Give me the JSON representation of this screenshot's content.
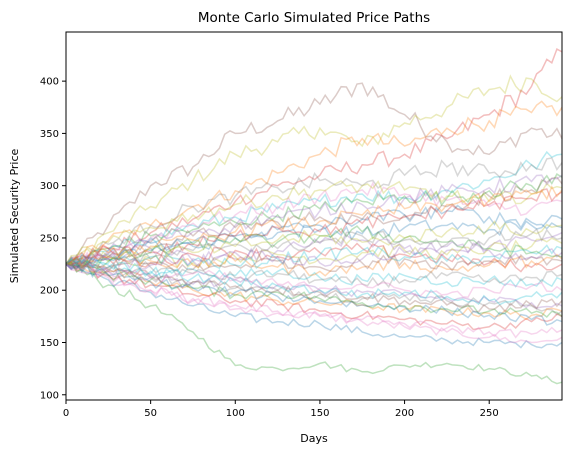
{
  "chart_data": {
    "type": "line",
    "title": "Monte Carlo Simulated Price Paths",
    "xlabel": "Days",
    "ylabel": "Simulated Security Price",
    "xlim": [
      0,
      293
    ],
    "ylim": [
      95,
      447
    ],
    "xticks": [
      0,
      50,
      100,
      150,
      200,
      250
    ],
    "yticks": [
      100,
      150,
      200,
      250,
      300,
      350,
      400
    ],
    "grid": false,
    "legend": false,
    "line_alpha": 0.3,
    "palette": [
      "#1f77b4",
      "#ff7f0e",
      "#2ca02c",
      "#d62728",
      "#9467bd",
      "#8c564b",
      "#e377c2",
      "#7f7f7f",
      "#bcbd22",
      "#17becf"
    ],
    "series": [
      {
        "color": "#8c564b",
        "x": [
          0,
          25,
          50,
          75,
          100,
          125,
          150,
          175,
          200,
          225,
          250,
          275,
          293
        ],
        "y": [
          225,
          262,
          300,
          318,
          350,
          362,
          378,
          398,
          368,
          342,
          330,
          355,
          345
        ]
      },
      {
        "color": "#bcbd22",
        "x": [
          0,
          25,
          50,
          75,
          100,
          125,
          150,
          175,
          200,
          225,
          250,
          275,
          293
        ],
        "y": [
          225,
          255,
          280,
          305,
          330,
          342,
          355,
          338,
          360,
          375,
          392,
          402,
          385
        ]
      },
      {
        "color": "#d62728",
        "x": [
          0,
          25,
          50,
          75,
          100,
          125,
          150,
          175,
          200,
          225,
          250,
          275,
          293
        ],
        "y": [
          225,
          240,
          255,
          268,
          285,
          300,
          310,
          320,
          330,
          345,
          368,
          395,
          428
        ]
      },
      {
        "color": "#ff7f0e",
        "x": [
          0,
          25,
          50,
          75,
          100,
          125,
          150,
          175,
          200,
          225,
          250,
          275,
          293
        ],
        "y": [
          225,
          248,
          262,
          280,
          295,
          312,
          330,
          345,
          338,
          355,
          362,
          370,
          375
        ]
      },
      {
        "color": "#2ca02c",
        "x": [
          0,
          25,
          50,
          75,
          100,
          125,
          150,
          175,
          200,
          225,
          250,
          275,
          293
        ],
        "y": [
          225,
          205,
          185,
          160,
          128,
          125,
          130,
          122,
          128,
          130,
          125,
          118,
          112
        ]
      },
      {
        "color": "#1f77b4",
        "x": [
          0,
          25,
          50,
          75,
          100,
          125,
          150,
          175,
          200,
          225,
          250,
          275,
          293
        ],
        "y": [
          225,
          210,
          198,
          185,
          175,
          170,
          168,
          160,
          155,
          152,
          150,
          148,
          150
        ]
      },
      {
        "color": "#e377c2",
        "x": [
          0,
          25,
          50,
          75,
          100,
          125,
          150,
          175,
          200,
          225,
          250,
          275,
          293
        ],
        "y": [
          225,
          215,
          200,
          190,
          182,
          178,
          175,
          170,
          165,
          160,
          155,
          150,
          155
        ]
      },
      {
        "color": "#9467bd",
        "x": [
          0,
          25,
          50,
          75,
          100,
          125,
          150,
          175,
          200,
          225,
          250,
          275,
          293
        ],
        "y": [
          225,
          232,
          240,
          228,
          230,
          238,
          245,
          248,
          240,
          238,
          242,
          248,
          255
        ]
      },
      {
        "color": "#17becf",
        "x": [
          0,
          25,
          50,
          75,
          100,
          125,
          150,
          175,
          200,
          225,
          250,
          275,
          293
        ],
        "y": [
          225,
          238,
          250,
          262,
          270,
          278,
          285,
          292,
          288,
          296,
          305,
          320,
          330
        ]
      },
      {
        "color": "#7f7f7f",
        "x": [
          0,
          25,
          50,
          75,
          100,
          125,
          150,
          175,
          200,
          225,
          250,
          275,
          293
        ],
        "y": [
          225,
          220,
          212,
          208,
          202,
          200,
          196,
          192,
          195,
          190,
          188,
          185,
          180
        ]
      },
      {
        "color": "#8c564b",
        "x": [
          0,
          25,
          50,
          75,
          100,
          125,
          150,
          175,
          200,
          225,
          250,
          275,
          293
        ],
        "y": [
          225,
          232,
          246,
          252,
          260,
          265,
          270,
          268,
          272,
          280,
          290,
          296,
          302
        ]
      },
      {
        "color": "#d62728",
        "x": [
          0,
          25,
          50,
          75,
          100,
          125,
          150,
          175,
          200,
          225,
          250,
          275,
          293
        ],
        "y": [
          225,
          214,
          205,
          196,
          190,
          186,
          180,
          176,
          172,
          168,
          165,
          170,
          175
        ]
      },
      {
        "color": "#2ca02c",
        "x": [
          0,
          25,
          50,
          75,
          100,
          125,
          150,
          175,
          200,
          225,
          250,
          275,
          293
        ],
        "y": [
          225,
          240,
          252,
          258,
          265,
          272,
          278,
          285,
          290,
          288,
          295,
          300,
          308
        ]
      },
      {
        "color": "#ff7f0e",
        "x": [
          0,
          25,
          50,
          75,
          100,
          125,
          150,
          175,
          200,
          225,
          250,
          275,
          293
        ],
        "y": [
          225,
          218,
          208,
          200,
          195,
          190,
          188,
          186,
          182,
          180,
          178,
          176,
          180
        ]
      },
      {
        "color": "#1f77b4",
        "x": [
          0,
          25,
          50,
          75,
          100,
          125,
          150,
          175,
          200,
          225,
          250,
          275,
          293
        ],
        "y": [
          225,
          235,
          245,
          242,
          250,
          255,
          258,
          254,
          260,
          262,
          258,
          262,
          268
        ]
      },
      {
        "color": "#bcbd22",
        "x": [
          0,
          25,
          50,
          75,
          100,
          125,
          150,
          175,
          200,
          225,
          250,
          275,
          293
        ],
        "y": [
          225,
          228,
          230,
          226,
          232,
          234,
          230,
          236,
          238,
          234,
          240,
          242,
          245
        ]
      },
      {
        "color": "#e377c2",
        "x": [
          0,
          25,
          50,
          75,
          100,
          125,
          150,
          175,
          200,
          225,
          250,
          275,
          293
        ],
        "y": [
          225,
          236,
          250,
          264,
          272,
          280,
          290,
          296,
          292,
          286,
          280,
          278,
          285
        ]
      },
      {
        "color": "#9467bd",
        "x": [
          0,
          25,
          50,
          75,
          100,
          125,
          150,
          175,
          200,
          225,
          250,
          275,
          293
        ],
        "y": [
          225,
          218,
          212,
          206,
          210,
          205,
          200,
          198,
          195,
          192,
          190,
          188,
          185
        ]
      },
      {
        "color": "#17becf",
        "x": [
          0,
          25,
          50,
          75,
          100,
          125,
          150,
          175,
          200,
          225,
          250,
          275,
          293
        ],
        "y": [
          225,
          222,
          216,
          220,
          214,
          218,
          212,
          210,
          214,
          208,
          210,
          206,
          210
        ]
      },
      {
        "color": "#7f7f7f",
        "x": [
          0,
          25,
          50,
          75,
          100,
          125,
          150,
          175,
          200,
          225,
          250,
          275,
          293
        ],
        "y": [
          225,
          244,
          262,
          280,
          290,
          298,
          305,
          300,
          310,
          318,
          312,
          320,
          322
        ]
      },
      {
        "color": "#d62728",
        "x": [
          0,
          25,
          50,
          75,
          100,
          125,
          150,
          175,
          200,
          225,
          250,
          275,
          293
        ],
        "y": [
          225,
          230,
          226,
          234,
          238,
          232,
          236,
          240,
          234,
          230,
          226,
          222,
          225
        ]
      },
      {
        "color": "#2ca02c",
        "x": [
          0,
          25,
          50,
          75,
          100,
          125,
          150,
          175,
          200,
          225,
          250,
          275,
          293
        ],
        "y": [
          225,
          215,
          210,
          202,
          196,
          198,
          192,
          188,
          185,
          182,
          180,
          178,
          175
        ]
      },
      {
        "color": "#1f77b4",
        "x": [
          0,
          25,
          50,
          75,
          100,
          125,
          150,
          175,
          200,
          225,
          250,
          275,
          293
        ],
        "y": [
          225,
          230,
          238,
          246,
          252,
          258,
          262,
          268,
          272,
          276,
          270,
          265,
          260
        ]
      },
      {
        "color": "#ff7f0e",
        "x": [
          0,
          25,
          50,
          75,
          100,
          125,
          150,
          175,
          200,
          225,
          250,
          275,
          293
        ],
        "y": [
          225,
          232,
          228,
          224,
          228,
          222,
          218,
          222,
          226,
          220,
          224,
          228,
          230
        ]
      },
      {
        "color": "#8c564b",
        "x": [
          0,
          25,
          50,
          75,
          100,
          125,
          150,
          175,
          200,
          225,
          250,
          275,
          293
        ],
        "y": [
          225,
          220,
          214,
          208,
          204,
          200,
          198,
          194,
          190,
          186,
          182,
          186,
          190
        ]
      },
      {
        "color": "#bcbd22",
        "x": [
          0,
          25,
          50,
          75,
          100,
          125,
          150,
          175,
          200,
          225,
          250,
          275,
          293
        ],
        "y": [
          225,
          246,
          260,
          272,
          282,
          290,
          296,
          300,
          296,
          290,
          285,
          292,
          298
        ]
      },
      {
        "color": "#e377c2",
        "x": [
          0,
          25,
          50,
          75,
          100,
          125,
          150,
          175,
          200,
          225,
          250,
          275,
          293
        ],
        "y": [
          225,
          212,
          200,
          192,
          186,
          180,
          176,
          172,
          168,
          164,
          160,
          158,
          162
        ]
      },
      {
        "color": "#9467bd",
        "x": [
          0,
          25,
          50,
          75,
          100,
          125,
          150,
          175,
          200,
          225,
          250,
          275,
          293
        ],
        "y": [
          225,
          238,
          248,
          256,
          262,
          270,
          276,
          282,
          288,
          294,
          298,
          304,
          310
        ]
      },
      {
        "color": "#17becf",
        "x": [
          0,
          25,
          50,
          75,
          100,
          125,
          150,
          175,
          200,
          225,
          250,
          275,
          293
        ],
        "y": [
          225,
          226,
          232,
          228,
          224,
          230,
          234,
          238,
          232,
          228,
          232,
          236,
          240
        ]
      },
      {
        "color": "#7f7f7f",
        "x": [
          0,
          25,
          50,
          75,
          100,
          125,
          150,
          175,
          200,
          225,
          250,
          275,
          293
        ],
        "y": [
          225,
          218,
          222,
          216,
          212,
          216,
          210,
          206,
          210,
          214,
          208,
          212,
          215
        ]
      },
      {
        "color": "#d62728",
        "x": [
          0,
          25,
          50,
          75,
          100,
          125,
          150,
          175,
          200,
          225,
          250,
          275,
          293
        ],
        "y": [
          225,
          240,
          236,
          244,
          252,
          260,
          256,
          264,
          270,
          276,
          282,
          288,
          294
        ]
      },
      {
        "color": "#2ca02c",
        "x": [
          0,
          25,
          50,
          75,
          100,
          125,
          150,
          175,
          200,
          225,
          250,
          275,
          293
        ],
        "y": [
          225,
          228,
          236,
          244,
          250,
          246,
          252,
          256,
          250,
          246,
          240,
          236,
          232
        ]
      },
      {
        "color": "#1f77b4",
        "x": [
          0,
          25,
          50,
          75,
          100,
          125,
          150,
          175,
          200,
          225,
          250,
          275,
          293
        ],
        "y": [
          225,
          214,
          208,
          202,
          198,
          194,
          190,
          186,
          184,
          180,
          176,
          172,
          170
        ]
      },
      {
        "color": "#ff7f0e",
        "x": [
          0,
          25,
          50,
          75,
          100,
          125,
          150,
          175,
          200,
          225,
          250,
          275,
          293
        ],
        "y": [
          225,
          236,
          242,
          248,
          256,
          262,
          266,
          272,
          278,
          282,
          286,
          292,
          296
        ]
      },
      {
        "color": "#8c564b",
        "x": [
          0,
          25,
          50,
          75,
          100,
          125,
          150,
          175,
          200,
          225,
          250,
          275,
          293
        ],
        "y": [
          225,
          222,
          226,
          220,
          224,
          228,
          222,
          226,
          230,
          224,
          228,
          232,
          228
        ]
      },
      {
        "color": "#bcbd22",
        "x": [
          0,
          25,
          50,
          75,
          100,
          125,
          150,
          175,
          200,
          225,
          250,
          275,
          293
        ],
        "y": [
          225,
          232,
          240,
          236,
          242,
          248,
          252,
          246,
          250,
          256,
          260,
          256,
          262
        ]
      },
      {
        "color": "#e377c2",
        "x": [
          0,
          25,
          50,
          75,
          100,
          125,
          150,
          175,
          200,
          225,
          250,
          275,
          293
        ],
        "y": [
          225,
          218,
          212,
          216,
          210,
          206,
          202,
          206,
          200,
          196,
          200,
          204,
          200
        ]
      },
      {
        "color": "#9467bd",
        "x": [
          0,
          25,
          50,
          75,
          100,
          125,
          150,
          175,
          200,
          225,
          250,
          275,
          293
        ],
        "y": [
          225,
          230,
          224,
          230,
          236,
          232,
          226,
          230,
          236,
          242,
          238,
          232,
          236
        ]
      },
      {
        "color": "#17becf",
        "x": [
          0,
          25,
          50,
          75,
          100,
          125,
          150,
          175,
          200,
          225,
          250,
          275,
          293
        ],
        "y": [
          225,
          224,
          218,
          212,
          208,
          204,
          200,
          196,
          198,
          194,
          190,
          194,
          198
        ]
      },
      {
        "color": "#7f7f7f",
        "x": [
          0,
          25,
          50,
          75,
          100,
          125,
          150,
          175,
          200,
          225,
          250,
          275,
          293
        ],
        "y": [
          225,
          234,
          230,
          238,
          244,
          240,
          246,
          252,
          248,
          244,
          250,
          254,
          250
        ]
      }
    ]
  }
}
